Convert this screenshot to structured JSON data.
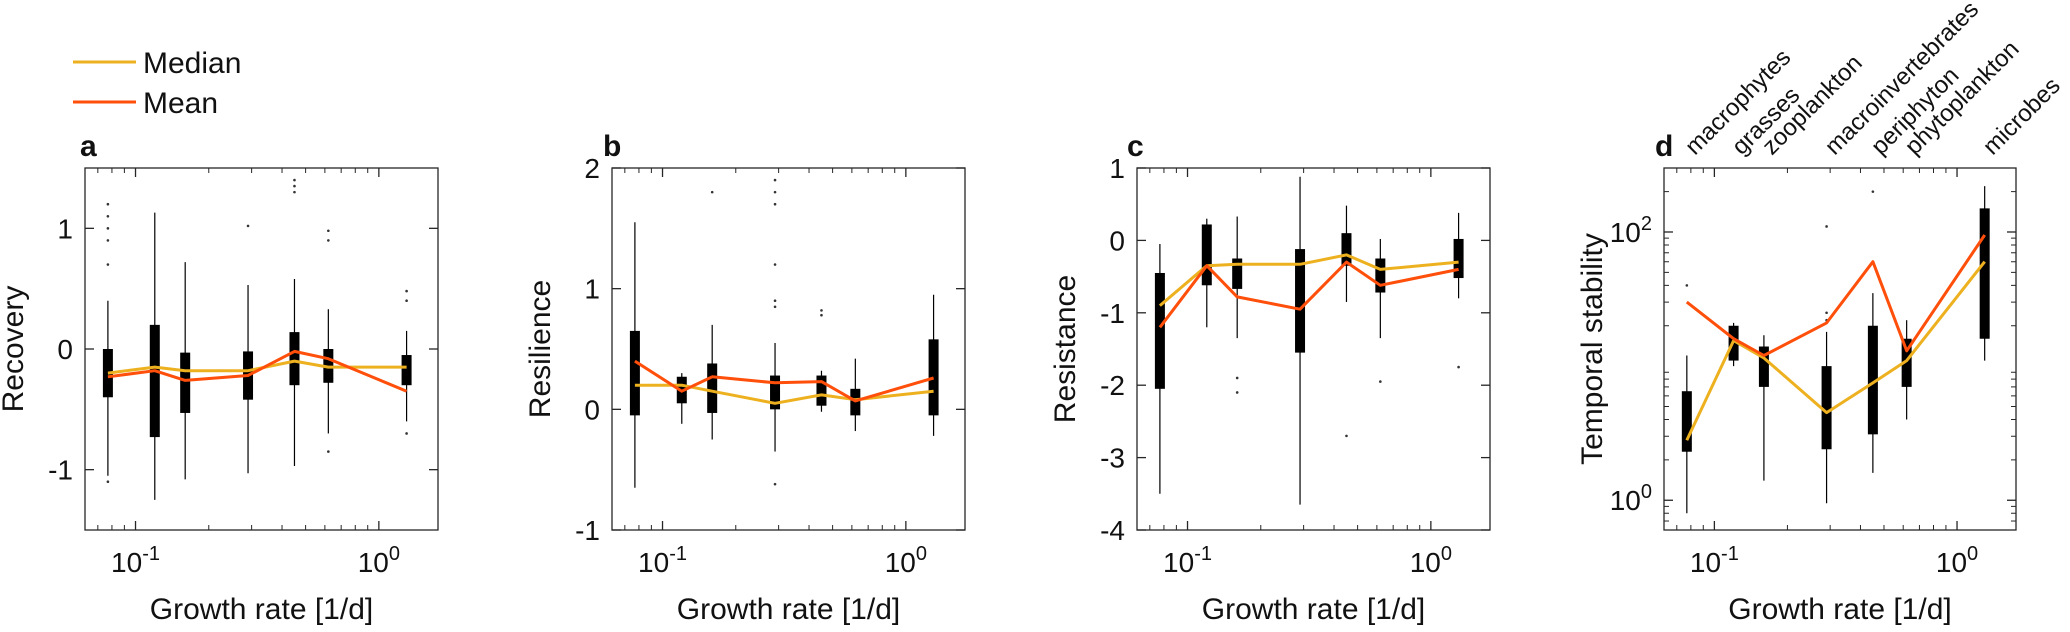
{
  "legend": [
    {
      "name": "Median",
      "color": "#EDB120"
    },
    {
      "name": "Mean",
      "color": "#FF4F0A"
    }
  ],
  "colors": {
    "median": "#EDB120",
    "mean": "#FF4F0A",
    "box": "#000000"
  },
  "chart_data": [
    {
      "type": "box",
      "panel": "a",
      "xlabel": "Growth rate [1/d]",
      "ylabel": "Recovery",
      "xscale": "log",
      "xlim": [
        0.062,
        1.75
      ],
      "ylim": [
        -1.5,
        1.5
      ],
      "yticks": [
        -1,
        0,
        1
      ],
      "ytick_labels": [
        "-1",
        "0",
        "1"
      ],
      "xtick_labels": [
        "10^-1",
        "10^0"
      ],
      "groups": [
        {
          "x": 0.077,
          "q1": -0.4,
          "q3": 0.0,
          "wlo": -1.05,
          "whi": 0.4,
          "outliers": [
            1.2,
            1.1,
            1.0,
            0.9,
            0.7,
            -1.1
          ]
        },
        {
          "x": 0.12,
          "q1": -0.73,
          "q3": 0.2,
          "wlo": -1.25,
          "whi": 1.13,
          "outliers": []
        },
        {
          "x": 0.16,
          "q1": -0.53,
          "q3": -0.03,
          "wlo": -1.08,
          "whi": 0.72,
          "outliers": []
        },
        {
          "x": 0.29,
          "q1": -0.42,
          "q3": -0.02,
          "wlo": -1.03,
          "whi": 0.53,
          "outliers": [
            1.02
          ]
        },
        {
          "x": 0.45,
          "q1": -0.3,
          "q3": 0.14,
          "wlo": -0.97,
          "whi": 0.58,
          "outliers": [
            1.4,
            1.35,
            1.3
          ]
        },
        {
          "x": 0.62,
          "q1": -0.28,
          "q3": 0.0,
          "wlo": -0.7,
          "whi": 0.33,
          "outliers": [
            0.98,
            0.9,
            -0.85
          ]
        },
        {
          "x": 1.3,
          "q1": -0.3,
          "q3": -0.05,
          "wlo": -0.6,
          "whi": 0.15,
          "outliers": [
            0.48,
            0.4,
            -0.7
          ]
        }
      ],
      "series": [
        {
          "name": "Median",
          "x": [
            0.077,
            0.12,
            0.16,
            0.29,
            0.45,
            0.62,
            1.3
          ],
          "y": [
            -0.2,
            -0.15,
            -0.18,
            -0.18,
            -0.1,
            -0.15,
            -0.15
          ]
        },
        {
          "name": "Mean",
          "x": [
            0.077,
            0.12,
            0.16,
            0.29,
            0.45,
            0.62,
            1.3
          ],
          "y": [
            -0.23,
            -0.18,
            -0.26,
            -0.22,
            -0.02,
            -0.08,
            -0.35
          ]
        }
      ]
    },
    {
      "type": "box",
      "panel": "b",
      "xlabel": "Growth rate [1/d]",
      "ylabel": "Resilience",
      "xscale": "log",
      "xlim": [
        0.062,
        1.75
      ],
      "ylim": [
        -1,
        2
      ],
      "yticks": [
        -1,
        0,
        1,
        2
      ],
      "ytick_labels": [
        "-1",
        "0",
        "1",
        "2"
      ],
      "xtick_labels": [
        "10^-1",
        "10^0"
      ],
      "groups": [
        {
          "x": 0.077,
          "q1": -0.05,
          "q3": 0.65,
          "wlo": -0.65,
          "whi": 1.55,
          "outliers": []
        },
        {
          "x": 0.12,
          "q1": 0.05,
          "q3": 0.27,
          "wlo": -0.12,
          "whi": 0.3,
          "outliers": []
        },
        {
          "x": 0.16,
          "q1": -0.03,
          "q3": 0.38,
          "wlo": -0.25,
          "whi": 0.7,
          "outliers": [
            1.8
          ]
        },
        {
          "x": 0.29,
          "q1": 0.0,
          "q3": 0.28,
          "wlo": -0.35,
          "whi": 0.55,
          "outliers": [
            1.9,
            1.8,
            1.7,
            1.2,
            0.9,
            0.85,
            -0.62
          ]
        },
        {
          "x": 0.45,
          "q1": 0.03,
          "q3": 0.28,
          "wlo": -0.02,
          "whi": 0.32,
          "outliers": [
            0.82,
            0.78
          ]
        },
        {
          "x": 0.62,
          "q1": -0.05,
          "q3": 0.17,
          "wlo": -0.18,
          "whi": 0.42,
          "outliers": []
        },
        {
          "x": 1.3,
          "q1": -0.05,
          "q3": 0.58,
          "wlo": -0.22,
          "whi": 0.95,
          "outliers": []
        }
      ],
      "series": [
        {
          "name": "Median",
          "x": [
            0.077,
            0.12,
            0.16,
            0.29,
            0.45,
            0.62,
            1.3
          ],
          "y": [
            0.2,
            0.2,
            0.15,
            0.05,
            0.12,
            0.08,
            0.15
          ]
        },
        {
          "name": "Mean",
          "x": [
            0.077,
            0.12,
            0.16,
            0.29,
            0.45,
            0.62,
            1.3
          ],
          "y": [
            0.4,
            0.15,
            0.27,
            0.22,
            0.23,
            0.07,
            0.26
          ]
        }
      ]
    },
    {
      "type": "box",
      "panel": "c",
      "xlabel": "Growth rate [1/d]",
      "ylabel": "Resistance",
      "xscale": "log",
      "xlim": [
        0.062,
        1.75
      ],
      "ylim": [
        -4,
        1
      ],
      "yticks": [
        -4,
        -3,
        -2,
        -1,
        0,
        1
      ],
      "ytick_labels": [
        "-4",
        "-3",
        "-2",
        "-1",
        "0",
        "1"
      ],
      "xtick_labels": [
        "10^-1",
        "10^0"
      ],
      "groups": [
        {
          "x": 0.077,
          "q1": -2.05,
          "q3": -0.45,
          "wlo": -3.5,
          "whi": -0.05,
          "outliers": []
        },
        {
          "x": 0.12,
          "q1": -0.62,
          "q3": 0.22,
          "wlo": -1.2,
          "whi": 0.3,
          "outliers": []
        },
        {
          "x": 0.16,
          "q1": -0.67,
          "q3": -0.25,
          "wlo": -1.35,
          "whi": 0.33,
          "outliers": [
            -1.9,
            -2.1
          ]
        },
        {
          "x": 0.29,
          "q1": -1.55,
          "q3": -0.12,
          "wlo": -3.65,
          "whi": 0.88,
          "outliers": []
        },
        {
          "x": 0.45,
          "q1": -0.35,
          "q3": 0.1,
          "wlo": -0.85,
          "whi": 0.48,
          "outliers": [
            -2.7
          ]
        },
        {
          "x": 0.62,
          "q1": -0.72,
          "q3": -0.25,
          "wlo": -1.35,
          "whi": 0.02,
          "outliers": [
            -1.95
          ]
        },
        {
          "x": 1.3,
          "q1": -0.52,
          "q3": 0.02,
          "wlo": -0.8,
          "whi": 0.38,
          "outliers": [
            -1.75
          ]
        }
      ],
      "series": [
        {
          "name": "Median",
          "x": [
            0.077,
            0.12,
            0.16,
            0.29,
            0.45,
            0.62,
            1.3
          ],
          "y": [
            -0.9,
            -0.35,
            -0.33,
            -0.33,
            -0.2,
            -0.4,
            -0.3
          ]
        },
        {
          "name": "Mean",
          "x": [
            0.077,
            0.12,
            0.16,
            0.29,
            0.45,
            0.62,
            1.3
          ],
          "y": [
            -1.2,
            -0.35,
            -0.78,
            -0.95,
            -0.3,
            -0.62,
            -0.4
          ]
        }
      ]
    },
    {
      "type": "box",
      "panel": "d",
      "xlabel": "Growth rate [1/d]",
      "ylabel": "Temporal stability",
      "xscale": "log",
      "yscale": "log",
      "xlim": [
        0.062,
        1.75
      ],
      "ylim": [
        0.6,
        300
      ],
      "yticks": [
        1,
        100
      ],
      "ytick_labels": [
        "10^0",
        "10^2"
      ],
      "xtick_labels": [
        "10^-1",
        "10^0"
      ],
      "categories": [
        "macrophytes",
        "grasses",
        "zooplankton",
        "macroinvertebrates",
        "periphyton",
        "phytoplankton",
        "microbes"
      ],
      "groups": [
        {
          "x": 0.077,
          "q1": 2.3,
          "q3": 6.5,
          "wlo": 0.8,
          "whi": 12,
          "outliers": [
            40
          ]
        },
        {
          "x": 0.12,
          "q1": 11,
          "q3": 20,
          "wlo": 10,
          "whi": 21,
          "outliers": []
        },
        {
          "x": 0.16,
          "q1": 7,
          "q3": 14,
          "wlo": 1.4,
          "whi": 17,
          "outliers": []
        },
        {
          "x": 0.29,
          "q1": 2.4,
          "q3": 10,
          "wlo": 0.95,
          "whi": 18,
          "outliers": [
            25,
            22,
            110
          ]
        },
        {
          "x": 0.45,
          "q1": 3.1,
          "q3": 20,
          "wlo": 1.6,
          "whi": 35,
          "outliers": [
            200
          ]
        },
        {
          "x": 0.62,
          "q1": 7,
          "q3": 16,
          "wlo": 4,
          "whi": 22,
          "outliers": []
        },
        {
          "x": 1.3,
          "q1": 16,
          "q3": 150,
          "wlo": 11,
          "whi": 220,
          "outliers": []
        }
      ],
      "series": [
        {
          "name": "Median",
          "x": [
            0.077,
            0.12,
            0.16,
            0.29,
            0.45,
            0.62,
            1.3
          ],
          "y": [
            2.8,
            15.5,
            11.5,
            4.5,
            7.5,
            11,
            60
          ]
        },
        {
          "name": "Mean",
          "x": [
            0.077,
            0.12,
            0.16,
            0.29,
            0.45,
            0.62,
            1.3
          ],
          "y": [
            30,
            16,
            12,
            21,
            60,
            13,
            95
          ]
        }
      ]
    }
  ]
}
